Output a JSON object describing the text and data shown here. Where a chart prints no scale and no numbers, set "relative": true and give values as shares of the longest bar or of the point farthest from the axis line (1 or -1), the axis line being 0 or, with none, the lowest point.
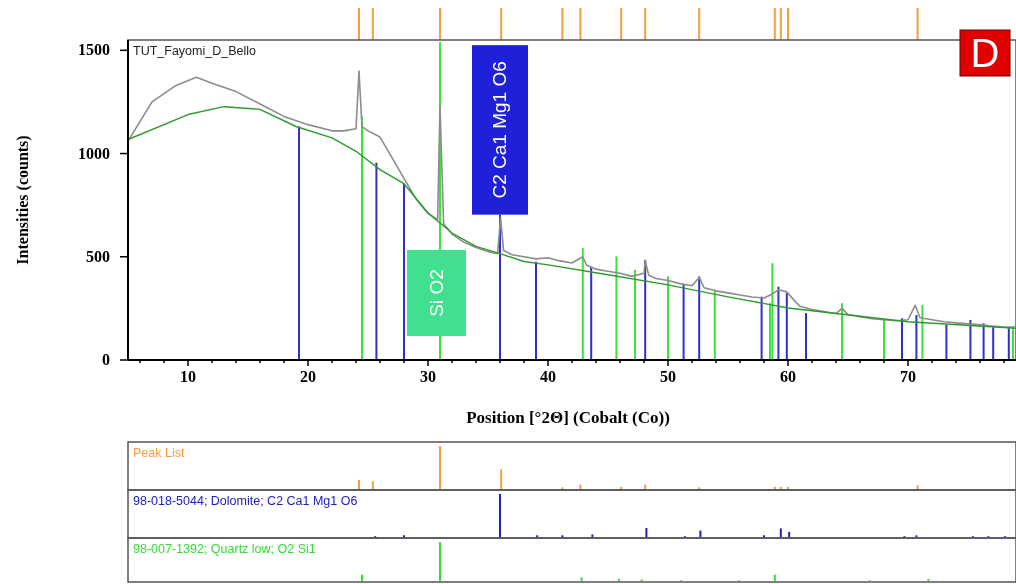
{
  "chart_data": [
    {
      "type": "bar",
      "relative": true,
      "xlim": [
        5,
        79
      ],
      "series": [
        {
          "color": "#f0a040",
          "x": [
            24.25,
            25.4,
            31.0,
            36.1,
            41.2,
            42.7,
            46.1,
            48.1,
            52.6,
            58.9,
            59.4,
            60.0,
            70.8
          ],
          "values": [
            1,
            1,
            1,
            1,
            1,
            1,
            1,
            1,
            1,
            1,
            1,
            1,
            1
          ]
        }
      ]
    },
    {
      "type": "line",
      "title": "TUT_Fayomi_D_Bello",
      "xlabel": "Position [°2Θ] (Cobalt (Co))",
      "ylabel": "Intensities (counts)",
      "xlim": [
        5,
        79
      ],
      "ylim": [
        0,
        1550
      ],
      "xticks": [
        {
          "value": 6,
          "label": null
        },
        {
          "value": 8,
          "label": null
        },
        10,
        {
          "value": 12,
          "label": null
        },
        {
          "value": 14,
          "label": null
        },
        {
          "value": 16,
          "label": null
        },
        {
          "value": 18,
          "label": null
        },
        20,
        {
          "value": 22,
          "label": null
        },
        {
          "value": 24,
          "label": null
        },
        {
          "value": 26,
          "label": null
        },
        {
          "value": 28,
          "label": null
        },
        30,
        {
          "value": 32,
          "label": null
        },
        {
          "value": 34,
          "label": null
        },
        {
          "value": 36,
          "label": null
        },
        {
          "value": 38,
          "label": null
        },
        40,
        {
          "value": 42,
          "label": null
        },
        {
          "value": 44,
          "label": null
        },
        {
          "value": 46,
          "label": null
        },
        {
          "value": 48,
          "label": null
        },
        50,
        {
          "value": 52,
          "label": null
        },
        {
          "value": 54,
          "label": null
        },
        {
          "value": 56,
          "label": null
        },
        {
          "value": 58,
          "label": null
        },
        60,
        {
          "value": 62,
          "label": null
        },
        {
          "value": 64,
          "label": null
        },
        {
          "value": 66,
          "label": null
        },
        {
          "value": 68,
          "label": null
        },
        70,
        {
          "value": 72,
          "label": null
        },
        {
          "value": 74,
          "label": null
        },
        {
          "value": 76,
          "label": null
        },
        {
          "value": 78,
          "label": null
        }
      ],
      "yticks": [
        0,
        500,
        1000,
        1500
      ],
      "annotations": [
        {
          "text": "C2 Ca1 Mg1 O6",
          "x": 36.0,
          "y": 704
        },
        "Si O2",
        "D"
      ],
      "series": [
        {
          "color": "#8c8c8c",
          "x": [
            5,
            7,
            9,
            10.7,
            12,
            14,
            16,
            18,
            20,
            22,
            23,
            24,
            24.25,
            24.5,
            25,
            26,
            27,
            28,
            29,
            30,
            30.8,
            31.0,
            31.3,
            32,
            33,
            34,
            35,
            35.8,
            36.05,
            36.3,
            37,
            38,
            39,
            40,
            41,
            42,
            42.9,
            43.2,
            44,
            45,
            46,
            47,
            48,
            48.1,
            48.4,
            49,
            50,
            51,
            52,
            52.6,
            53,
            54,
            55,
            56,
            57,
            58,
            58.7,
            59.2,
            59.9,
            60.5,
            61,
            62,
            63,
            64,
            64.5,
            65,
            66,
            67,
            68,
            69,
            70,
            70.6,
            71,
            72,
            73,
            74,
            75,
            76,
            77,
            78,
            79
          ],
          "values": [
            1060,
            1250,
            1330,
            1370,
            1340,
            1300,
            1240,
            1180,
            1140,
            1110,
            1110,
            1120,
            1400,
            1130,
            1110,
            1080,
            980,
            880,
            780,
            710,
            680,
            1230,
            660,
            610,
            570,
            545,
            525,
            515,
            690,
            530,
            510,
            500,
            490,
            495,
            480,
            470,
            500,
            460,
            440,
            430,
            420,
            405,
            420,
            480,
            410,
            395,
            385,
            370,
            360,
            400,
            350,
            335,
            325,
            315,
            305,
            300,
            320,
            340,
            330,
            290,
            260,
            245,
            235,
            225,
            250,
            220,
            210,
            200,
            195,
            190,
            195,
            265,
            205,
            195,
            185,
            180,
            175,
            170,
            165,
            160,
            160
          ]
        },
        {
          "color": "#2e9a2e",
          "x": [
            5,
            10,
            13,
            16,
            19,
            22,
            24,
            26,
            28,
            30,
            32,
            34,
            36,
            38,
            40,
            45,
            50,
            55,
            60,
            70,
            79
          ],
          "values": [
            1068,
            1189,
            1227,
            1214,
            1131,
            1076,
            1011,
            922,
            854,
            712,
            615,
            550,
            515,
            477,
            461,
            413,
            364,
            306,
            252,
            185,
            154
          ]
        },
        {
          "type": "bar",
          "color": "#3030d0",
          "x": [
            19.25,
            25.7,
            28.0,
            36.0,
            39.0,
            43.6,
            48.1,
            51.3,
            52.6,
            57.8,
            59.2,
            59.9,
            61.5,
            69.5,
            70.7,
            73.2,
            75.2,
            76.3,
            77.1,
            78.4
          ],
          "values": [
            1131,
            956,
            854,
            704,
            476,
            452,
            485,
            364,
            405,
            307,
            355,
            324,
            227,
            202,
            218,
            170,
            194,
            178,
            162,
            154
          ]
        },
        {
          "type": "bar",
          "color": "#40e040",
          "x": [
            24.5,
            31.0,
            42.9,
            45.7,
            47.25,
            50.0,
            53.9,
            58.5,
            58.7,
            64.5,
            68.0,
            71.2,
            78.75
          ],
          "values": [
            1180,
            1540,
            542,
            502,
            437,
            405,
            340,
            275,
            469,
            275,
            194,
            267,
            154
          ]
        }
      ]
    },
    {
      "type": "bar",
      "relative": true,
      "title": "Peak List",
      "xlim": [
        5,
        79
      ],
      "series": [
        {
          "color": "#f0a040",
          "x": [
            24.25,
            25.4,
            31.0,
            36.1,
            41.2,
            42.7,
            46.1,
            48.1,
            52.6,
            58.9,
            59.4,
            60.0,
            70.8
          ],
          "values": [
            0.21,
            0.18,
            1,
            0.46,
            0.04,
            0.1,
            0.05,
            0.1,
            0.04,
            0.05,
            0.05,
            0.05,
            0.09
          ]
        }
      ]
    },
    {
      "type": "bar",
      "relative": true,
      "title": "98-018-5044; Dolomite; C2 Ca1 Mg1 O6",
      "xlim": [
        5,
        79
      ],
      "series": [
        {
          "color": "#2020c0",
          "x": [
            25.6,
            28.0,
            36.0,
            39.1,
            41.2,
            43.7,
            48.2,
            51.4,
            52.7,
            58.0,
            59.4,
            60.1,
            69.7,
            70.7,
            75.4,
            76.7,
            78.1
          ],
          "values": [
            0.02,
            0.04,
            1,
            0.04,
            0.04,
            0.06,
            0.21,
            0.02,
            0.15,
            0.04,
            0.2,
            0.12,
            0.02,
            0.04,
            0.02,
            0.02,
            0.02
          ]
        }
      ]
    },
    {
      "type": "bar",
      "relative": true,
      "title": "98-007-1392; Quartz low; O2 Si1",
      "xlim": [
        5,
        79
      ],
      "series": [
        {
          "color": "#33dd33",
          "x": [
            24.5,
            31.0,
            42.8,
            45.9,
            47.8,
            51.1,
            55.9,
            58.9,
            66.8,
            71.7
          ],
          "values": [
            0.16,
            1,
            0.09,
            0.06,
            0.04,
            0.02,
            0.02,
            0.16,
            0.02,
            0.05
          ]
        }
      ]
    }
  ]
}
